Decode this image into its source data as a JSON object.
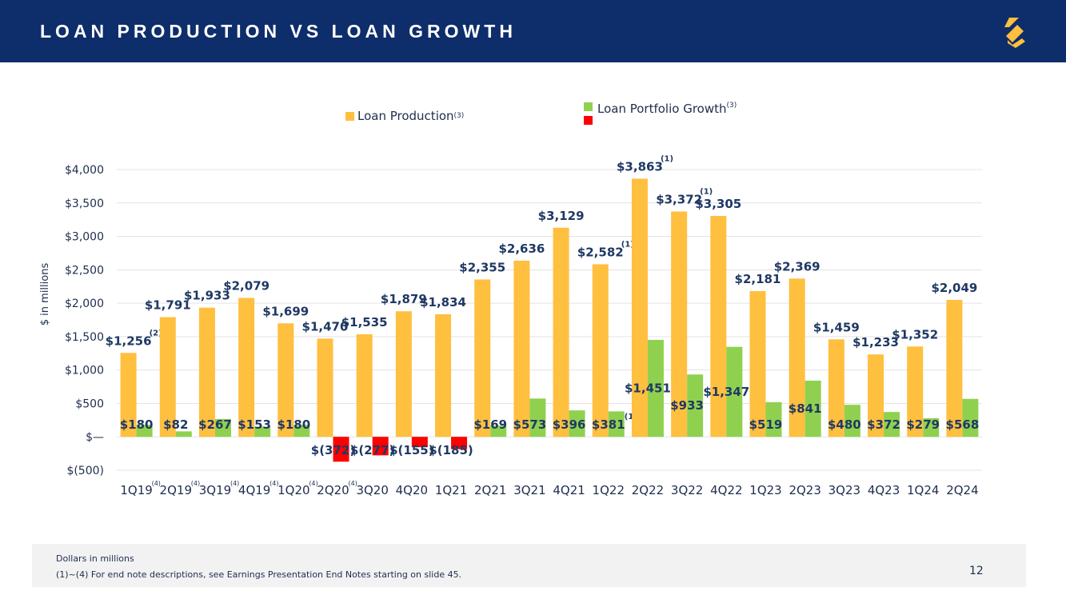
{
  "header": {
    "title": "LOAN PRODUCTION VS LOAN GROWTH"
  },
  "legend": {
    "production_label": "Loan Production",
    "production_note": "(3)",
    "growth_label": "Loan Portfolio Growth",
    "growth_note": "(3)"
  },
  "colors": {
    "header_bg": "#0e2d6b",
    "production": "#ffbf3f",
    "growth_positive": "#8fd14f",
    "growth_negative": "#ff0000",
    "label_text": "#1f3864",
    "logo": "#ffbf3f"
  },
  "chart_data": {
    "type": "bar",
    "title": "",
    "xlabel": "",
    "ylabel": "$ in millions",
    "ylim": [
      -500,
      4000
    ],
    "yticks": [
      -500,
      0,
      500,
      1000,
      1500,
      2000,
      2500,
      3000,
      3500,
      4000
    ],
    "ytick_labels": [
      "$(500)",
      "$—",
      "$500",
      "$1,000",
      "$1,500",
      "$2,000",
      "$2,500",
      "$3,000",
      "$3,500",
      "$4,000"
    ],
    "categories": [
      "1Q19",
      "2Q19",
      "3Q19",
      "4Q19",
      "1Q20",
      "2Q20",
      "3Q20",
      "4Q20",
      "1Q21",
      "2Q21",
      "3Q21",
      "4Q21",
      "1Q22",
      "2Q22",
      "3Q22",
      "4Q22",
      "1Q23",
      "2Q23",
      "3Q23",
      "4Q23",
      "1Q24",
      "2Q24"
    ],
    "category_notes": [
      "(4)",
      "(4)",
      "(4)",
      "(4)",
      "(4)",
      "(4)",
      "",
      "",
      "",
      "",
      "",
      "",
      "",
      "",
      "",
      "",
      "",
      "",
      "",
      "",
      "",
      ""
    ],
    "series": [
      {
        "name": "Loan Production",
        "values": [
          1256,
          1791,
          1933,
          2079,
          1699,
          1470,
          1535,
          1879,
          1834,
          2355,
          2636,
          3129,
          2582,
          3863,
          3372,
          3305,
          2181,
          2369,
          1459,
          1233,
          1352,
          2049
        ],
        "labels": [
          "$1,256",
          "$1,791",
          "$1,933",
          "$2,079",
          "$1,699",
          "$1,470",
          "$1,535",
          "$1,879",
          "$1,834",
          "$2,355",
          "$2,636",
          "$3,129",
          "$2,582",
          "$3,863",
          "$3,372",
          "$3,305",
          "$2,181",
          "$2,369",
          "$1,459",
          "$1,233",
          "$1,352",
          "$2,049"
        ],
        "notes": [
          "(2)",
          "",
          "",
          "",
          "",
          "",
          "",
          "",
          "",
          "",
          "",
          "",
          "(1)",
          "(1)",
          "(1)",
          "",
          "",
          "",
          "",
          "",
          "",
          ""
        ]
      },
      {
        "name": "Loan Portfolio Growth",
        "values": [
          180,
          82,
          267,
          153,
          180,
          -372,
          -277,
          -155,
          -185,
          169,
          573,
          396,
          381,
          1451,
          933,
          1347,
          519,
          841,
          480,
          372,
          279,
          568
        ],
        "labels": [
          "$180",
          "$82",
          "$267",
          "$153",
          "$180",
          "$(372)",
          "$(277)",
          "$(155)",
          "$(185)",
          "$169",
          "$573",
          "$396",
          "$381",
          "$1,451",
          "$933",
          "$1,347",
          "$519",
          "$841",
          "$480",
          "$372",
          "$279",
          "$568"
        ],
        "notes": [
          "",
          "",
          "",
          "",
          "",
          "",
          "",
          "",
          "",
          "",
          "",
          "",
          "(1)",
          "",
          "",
          "",
          "",
          "",
          "",
          "",
          "",
          ""
        ]
      }
    ]
  },
  "footer": {
    "line1": "Dollars in millions",
    "line2": "(1)~(4)  For end note descriptions, see Earnings Presentation End Notes starting on slide 45."
  },
  "page_number": "12"
}
